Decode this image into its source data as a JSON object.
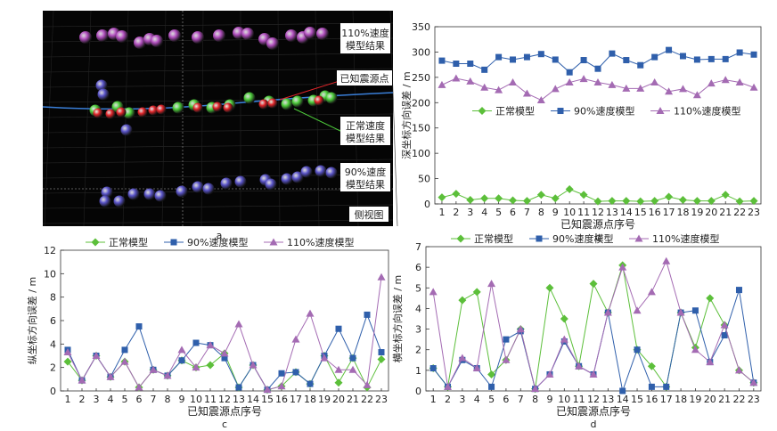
{
  "panels": {
    "a": {
      "letter": "a",
      "labels": {
        "v110": [
          "110%速度",
          "模型结果"
        ],
        "known": "已知震源点",
        "normal": [
          "正常速度",
          "模型结果"
        ],
        "v90": [
          "90%速度",
          "模型结果"
        ],
        "view": "侧视图"
      },
      "colors": {
        "v110": "#b24fbf",
        "known": "#e3262b",
        "normal": "#4fcf3c",
        "v90": "#5a54c9"
      }
    }
  },
  "chart_data": [
    {
      "panel": "b",
      "type": "line",
      "ylabel": "深坐标方向误差 / m",
      "xlabel": "已知震源点序号",
      "ylim": [
        0,
        350
      ],
      "yticks": [
        0,
        50,
        100,
        150,
        200,
        250,
        300,
        350
      ],
      "categories": [
        "1",
        "2",
        "3",
        "4",
        "5",
        "6",
        "7",
        "8",
        "9",
        "10",
        "11",
        "12",
        "13",
        "14",
        "15",
        "16",
        "17",
        "18",
        "19",
        "20",
        "21",
        "22",
        "23"
      ],
      "legend": "center",
      "series": [
        {
          "name": "正常模型",
          "color": "#5cbf3a",
          "marker": "diamond",
          "values": [
            13,
            20,
            8,
            11,
            11,
            7,
            6,
            18,
            11,
            29,
            18,
            5,
            6,
            6,
            5,
            6,
            14,
            8,
            6,
            6,
            18,
            5,
            6
          ]
        },
        {
          "name": "90%速度模型",
          "color": "#2f5fab",
          "marker": "square",
          "values": [
            283,
            277,
            277,
            265,
            290,
            285,
            290,
            296,
            285,
            260,
            284,
            267,
            297,
            284,
            274,
            290,
            304,
            292,
            285,
            286,
            286,
            299,
            295
          ]
        },
        {
          "name": "110%速度模型",
          "color": "#a46bb3",
          "marker": "triangle",
          "values": [
            235,
            248,
            242,
            230,
            225,
            240,
            218,
            205,
            227,
            240,
            247,
            240,
            235,
            228,
            228,
            240,
            222,
            227,
            215,
            238,
            245,
            240,
            230
          ]
        }
      ]
    },
    {
      "panel": "c",
      "type": "line",
      "ylabel": "纵坐标方向误差 / m",
      "xlabel": "已知震源点序号",
      "ylim": [
        0,
        12
      ],
      "yticks": [
        0,
        2,
        4,
        6,
        8,
        10,
        12
      ],
      "categories": [
        "1",
        "2",
        "3",
        "4",
        "5",
        "6",
        "7",
        "8",
        "9",
        "10",
        "11",
        "12",
        "13",
        "14",
        "15",
        "16",
        "17",
        "18",
        "19",
        "20",
        "21",
        "22",
        "23"
      ],
      "legend": "top",
      "series": [
        {
          "name": "正常模型",
          "color": "#5cbf3a",
          "marker": "diamond",
          "values": [
            2.5,
            0.9,
            3.0,
            1.2,
            2.5,
            0.3,
            1.8,
            1.3,
            2.6,
            2.0,
            2.2,
            3.2,
            0.3,
            2.2,
            0.1,
            0.4,
            1.6,
            0.6,
            3.0,
            0.7,
            2.8,
            0.3,
            2.7
          ]
        },
        {
          "name": "90%速度模型",
          "color": "#2f5fab",
          "marker": "square",
          "values": [
            3.5,
            0.9,
            3.0,
            1.2,
            3.5,
            5.5,
            1.8,
            1.3,
            2.6,
            4.1,
            3.9,
            2.8,
            0.3,
            2.2,
            0.1,
            1.5,
            1.6,
            0.6,
            3.0,
            5.3,
            2.8,
            6.5,
            3.3
          ]
        },
        {
          "name": "110%速度模型",
          "color": "#a46bb3",
          "marker": "triangle",
          "values": [
            3.3,
            0.9,
            3.0,
            1.2,
            2.5,
            0.3,
            1.8,
            1.3,
            3.5,
            2.0,
            3.9,
            3.2,
            5.7,
            2.2,
            0.1,
            0.4,
            4.4,
            6.6,
            2.8,
            1.8,
            1.8,
            0.5,
            9.7
          ]
        }
      ]
    },
    {
      "panel": "d",
      "type": "line",
      "ylabel": "横坐标方向误差 / m",
      "xlabel": "已知震源点序号",
      "ylim": [
        0,
        7
      ],
      "yticks": [
        0,
        1,
        2,
        3,
        4,
        5,
        6,
        7
      ],
      "categories": [
        "1",
        "2",
        "3",
        "4",
        "5",
        "6",
        "7",
        "8",
        "9",
        "10",
        "11",
        "12",
        "13",
        "14",
        "15",
        "16",
        "17",
        "18",
        "19",
        "20",
        "21",
        "22",
        "23"
      ],
      "legend": "top",
      "series": [
        {
          "name": "正常模型",
          "color": "#5cbf3a",
          "marker": "diamond",
          "values": [
            1.1,
            0.2,
            4.4,
            4.8,
            0.8,
            1.5,
            3.0,
            0.1,
            5.0,
            3.5,
            1.2,
            5.2,
            3.8,
            6.1,
            2.0,
            1.2,
            0.2,
            3.8,
            2.1,
            4.5,
            3.2,
            1.0,
            0.4
          ]
        },
        {
          "name": "90%速度模型",
          "color": "#2f5fab",
          "marker": "square",
          "values": [
            1.1,
            0.2,
            1.5,
            1.1,
            0.2,
            2.5,
            2.9,
            0.1,
            0.8,
            2.4,
            1.2,
            0.8,
            3.8,
            0.0,
            2.0,
            0.2,
            0.2,
            3.8,
            3.9,
            1.4,
            2.7,
            4.9,
            0.4
          ]
        },
        {
          "name": "110%速度模型",
          "color": "#a46bb3",
          "marker": "triangle",
          "values": [
            4.8,
            0.2,
            1.6,
            1.1,
            5.2,
            1.5,
            3.0,
            0.1,
            0.8,
            2.5,
            1.2,
            0.8,
            3.8,
            6.0,
            3.9,
            4.8,
            6.3,
            3.8,
            2.0,
            1.4,
            3.2,
            1.0,
            0.4
          ]
        }
      ]
    }
  ]
}
